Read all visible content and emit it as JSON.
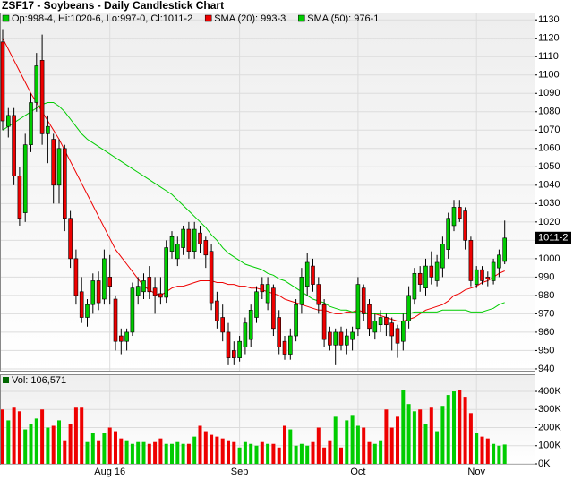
{
  "chart_data": {
    "type": "candlestick",
    "title": "ZSF17 - Soybeans - Daily Candlestick Chart",
    "ohlc_label": "Op:998-4, Hi:1020-6, Lo:997-0, Cl:1011-2",
    "up_color": "#00cc00",
    "down_color": "#ee0000",
    "grid": true,
    "categories": [
      null,
      null,
      null,
      null,
      null,
      null,
      null,
      null,
      null,
      null,
      null,
      null,
      null,
      null,
      null,
      null,
      null,
      null,
      null,
      "Aug 16",
      null,
      null,
      null,
      null,
      null,
      null,
      null,
      null,
      null,
      null,
      null,
      null,
      null,
      null,
      null,
      null,
      null,
      null,
      null,
      null,
      null,
      null,
      "Sep",
      null,
      null,
      null,
      null,
      null,
      null,
      null,
      null,
      null,
      null,
      null,
      null,
      null,
      null,
      null,
      null,
      null,
      null,
      null,
      null,
      "Oct",
      null,
      null,
      null,
      null,
      null,
      null,
      null,
      null,
      null,
      null,
      null,
      null,
      null,
      null,
      null,
      null,
      null,
      null,
      null,
      null,
      "Nov",
      null,
      null,
      null,
      null,
      null
    ],
    "open": [
      1118,
      1072,
      1078,
      1045,
      1025,
      1062,
      1085,
      1108,
      1068,
      1065,
      1040,
      1060,
      1022,
      1000,
      982,
      968,
      975,
      988,
      978,
      990,
      978,
      958,
      955,
      960,
      980,
      982,
      990,
      984,
      981,
      979,
      1004,
      1000,
      1006,
      1016,
      1004,
      1014,
      1010,
      1004,
      977,
      968,
      960,
      950,
      946,
      952,
      956,
      968,
      986,
      976,
      984,
      968,
      955,
      948,
      958,
      975,
      985,
      996,
      986,
      975,
      960,
      953,
      960,
      953,
      956,
      962,
      984,
      975,
      960,
      964,
      968,
      965,
      962,
      955,
      966,
      978,
      992,
      984,
      996,
      988,
      995,
      1005,
      1018,
      1028,
      1026,
      1010,
      986,
      994,
      990,
      988,
      995,
      998.5
    ],
    "high": [
      1125,
      1082,
      1082,
      1050,
      1068,
      1090,
      1112,
      1122,
      1078,
      1068,
      1065,
      1062,
      1026,
      1005,
      990,
      978,
      992,
      993,
      1005,
      1002,
      980,
      962,
      962,
      987,
      990,
      992,
      996,
      990,
      990,
      1010,
      1015,
      1012,
      1018,
      1020,
      1020,
      1018,
      1012,
      1008,
      982,
      975,
      965,
      955,
      958,
      968,
      975,
      985,
      990,
      990,
      986,
      972,
      958,
      962,
      978,
      995,
      1003,
      1000,
      990,
      978,
      963,
      962,
      963,
      962,
      963,
      990,
      986,
      978,
      970,
      972,
      970,
      968,
      964,
      970,
      985,
      995,
      996,
      1000,
      1004,
      1002,
      1012,
      1025,
      1032,
      1032,
      1028,
      1012,
      996,
      996,
      993,
      1000,
      1005,
      1020.75
    ],
    "low": [
      1070,
      1066,
      1040,
      1018,
      1020,
      1058,
      1080,
      1062,
      1052,
      1030,
      1030,
      1015,
      995,
      975,
      965,
      963,
      970,
      972,
      975,
      975,
      950,
      948,
      950,
      958,
      975,
      978,
      978,
      970,
      975,
      976,
      1000,
      996,
      1002,
      1000,
      1000,
      1003,
      995,
      972,
      962,
      955,
      942,
      942,
      944,
      948,
      952,
      965,
      978,
      972,
      958,
      948,
      945,
      945,
      955,
      970,
      980,
      982,
      970,
      952,
      950,
      942,
      950,
      948,
      950,
      958,
      966,
      958,
      956,
      960,
      958,
      950,
      946,
      950,
      962,
      975,
      982,
      980,
      986,
      985,
      990,
      1000,
      1015,
      1020,
      1005,
      985,
      984,
      986,
      985,
      986,
      990,
      997
    ],
    "close": [
      1075,
      1078,
      1045,
      1022,
      1062,
      1085,
      1105,
      1068,
      1072,
      1040,
      1060,
      1022,
      1000,
      980,
      968,
      975,
      988,
      976,
      1000,
      985,
      955,
      955,
      960,
      984,
      985,
      988,
      982,
      980,
      979,
      1006,
      1012,
      1008,
      1016,
      1004,
      1016,
      1008,
      1002,
      976,
      966,
      960,
      946,
      946,
      955,
      965,
      972,
      982,
      982,
      986,
      962,
      952,
      948,
      958,
      975,
      990,
      998,
      986,
      975,
      956,
      953,
      960,
      953,
      958,
      960,
      986,
      970,
      962,
      966,
      968,
      964,
      958,
      954,
      966,
      980,
      992,
      986,
      996,
      990,
      998,
      1008,
      1022,
      1028,
      1022,
      1010,
      988,
      994,
      988,
      989,
      998,
      1002,
      1011.25
    ],
    "series": [
      {
        "name": "SMA (20): 993-3",
        "color": "#ee0000",
        "values": [
          1120,
          1114,
          1108,
          1102,
          1096,
          1090,
          1085,
          1080,
          1075,
          1070,
          1065,
          1059,
          1053,
          1047,
          1041,
          1035,
          1029,
          1023,
          1017,
          1011,
          1005,
          1001,
          997,
          993,
          989,
          985,
          983,
          981,
          980,
          982,
          984,
          985,
          985,
          986,
          987,
          988,
          988,
          988,
          987,
          987,
          986,
          986,
          985,
          985,
          984,
          984,
          983,
          982,
          981,
          980,
          978,
          977,
          976,
          975,
          974,
          973,
          972,
          972,
          971,
          970,
          970,
          971,
          971,
          972,
          971,
          970,
          970,
          969,
          968,
          967,
          966,
          966,
          967,
          968,
          970,
          972,
          973,
          974,
          975,
          977,
          980,
          981,
          983,
          984,
          985,
          987,
          988,
          990,
          992,
          993.375
        ]
      },
      {
        "name": "SMA (50): 976-1",
        "color": "#00cc00",
        "values": [
          1070,
          1072,
          1074,
          1076,
          1078,
          1080,
          1082,
          1084,
          1085,
          1085,
          1083,
          1080,
          1076,
          1072,
          1068,
          1065,
          1063,
          1061,
          1059,
          1057,
          1055,
          1053,
          1051,
          1049,
          1047,
          1045,
          1043,
          1041,
          1039,
          1037,
          1035,
          1032,
          1029,
          1026,
          1023,
          1020,
          1017,
          1013,
          1010,
          1006,
          1003,
          1001,
          999,
          997,
          996,
          995,
          994,
          992,
          991,
          989,
          988,
          986,
          984,
          982,
          980,
          978,
          977,
          976,
          974,
          973,
          972,
          972,
          971,
          971,
          970,
          970,
          970,
          970,
          970,
          970,
          970,
          970,
          970,
          971,
          971,
          971,
          971,
          971,
          972,
          972,
          972,
          972,
          972,
          971,
          971,
          971,
          972,
          973,
          975,
          976.125
        ]
      }
    ],
    "last_label": {
      "value": 1011.25,
      "label": "1011-2"
    },
    "ylim": [
      939,
      1134
    ],
    "yticks": [
      940,
      950,
      960,
      970,
      980,
      990,
      1000,
      1010,
      1020,
      1030,
      1040,
      1050,
      1060,
      1070,
      1080,
      1090,
      1100,
      1110,
      1120,
      1130
    ],
    "volume": {
      "name": "Vol: 106,571",
      "legend_color": "#006600",
      "values": [
        300000,
        240000,
        310000,
        290000,
        190000,
        220000,
        250000,
        300000,
        200000,
        210000,
        240000,
        130000,
        220000,
        310000,
        310000,
        120000,
        170000,
        130000,
        170000,
        200000,
        180000,
        140000,
        130000,
        110000,
        120000,
        120000,
        110000,
        120000,
        140000,
        110000,
        110000,
        120000,
        110000,
        110000,
        150000,
        210000,
        180000,
        160000,
        150000,
        140000,
        130000,
        120000,
        90000,
        120000,
        110000,
        100000,
        120000,
        110000,
        110000,
        90000,
        210000,
        190000,
        100000,
        110000,
        100000,
        120000,
        200000,
        90000,
        130000,
        260000,
        90000,
        240000,
        270000,
        210000,
        200000,
        120000,
        110000,
        130000,
        300000,
        200000,
        260000,
        410000,
        330000,
        290000,
        300000,
        220000,
        310000,
        180000,
        320000,
        380000,
        400000,
        410000,
        370000,
        280000,
        170000,
        150000,
        140000,
        110000,
        100000,
        106571
      ],
      "ylim": [
        0,
        494000
      ],
      "yticks": [
        {
          "value": 0,
          "label": "0K"
        },
        {
          "value": 100000,
          "label": "100K"
        },
        {
          "value": 200000,
          "label": "200K"
        },
        {
          "value": 300000,
          "label": "300K"
        },
        {
          "value": 400000,
          "label": "400K"
        }
      ]
    }
  }
}
